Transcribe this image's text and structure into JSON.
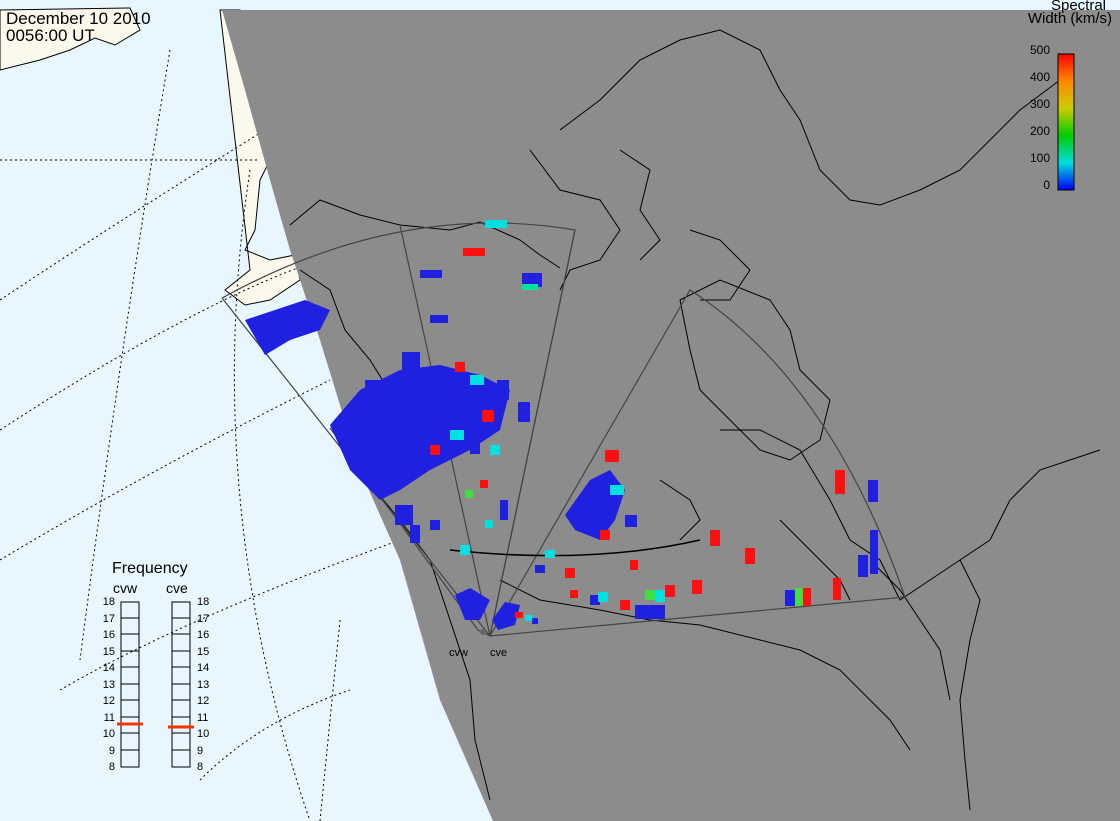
{
  "header": {
    "date": "December 10 2010",
    "time": "0056:00 UT"
  },
  "colorbar": {
    "title_line1": "Spectral",
    "title_line2": "Width (km/s)",
    "ticks": [
      "500",
      "400",
      "300",
      "200",
      "100",
      "0"
    ],
    "range": [
      0,
      500
    ],
    "colors": [
      "#ff0000",
      "#ffaa00",
      "#cccc00",
      "#00cc00",
      "#00dddd",
      "#0000ff"
    ]
  },
  "frequency": {
    "title": "Frequency",
    "radars": [
      {
        "name": "cvw",
        "value_mhz": 10.8
      },
      {
        "name": "cve",
        "value_mhz": 10.6
      }
    ],
    "ticks": [
      "18",
      "17",
      "16",
      "15",
      "14",
      "13",
      "12",
      "11",
      "10",
      "9",
      "8"
    ],
    "marker_color": "#ff3300"
  },
  "radars": [
    "cvw",
    "cve"
  ],
  "map": {
    "ocean_color": "#e8f6ff",
    "land_color": "#fbf9ec",
    "night_color": "#8c8c8c"
  }
}
